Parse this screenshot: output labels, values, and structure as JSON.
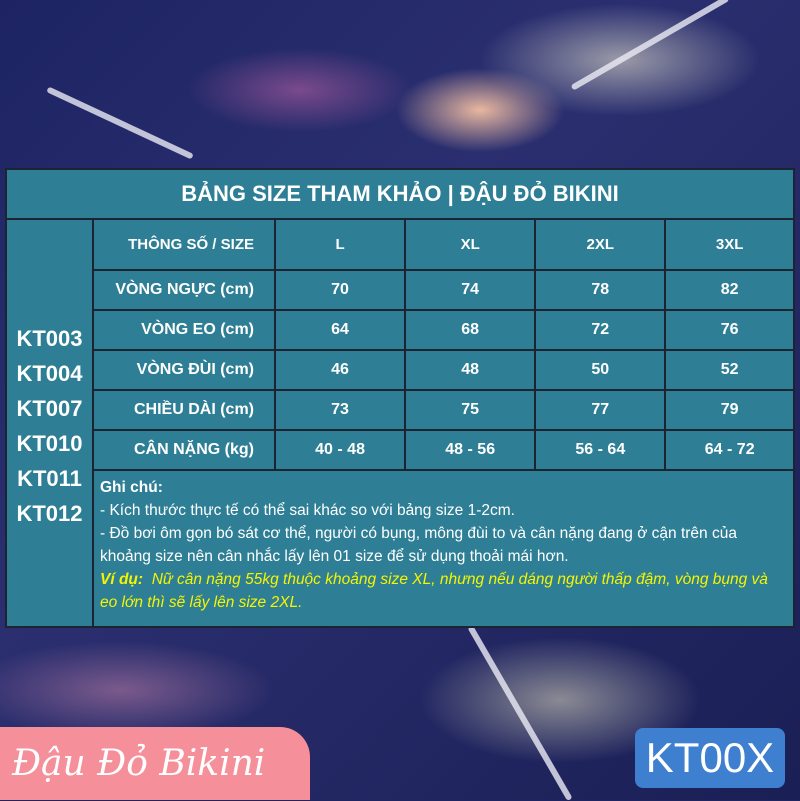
{
  "title": "BẢNG SIZE THAM KHẢO | ĐẬU ĐỎ BIKINI",
  "codes": [
    "KT003",
    "KT004",
    "KT007",
    "KT010",
    "KT011",
    "KT012"
  ],
  "table": {
    "header": [
      "THÔNG SỐ / SIZE",
      "L",
      "XL",
      "2XL",
      "3XL"
    ],
    "rows": [
      [
        "VÒNG NGỰC (cm)",
        "70",
        "74",
        "78",
        "82"
      ],
      [
        "VÒNG EO (cm)",
        "64",
        "68",
        "72",
        "76"
      ],
      [
        "VÒNG ĐÙI (cm)",
        "46",
        "48",
        "50",
        "52"
      ],
      [
        "CHIỀU DÀI (cm)",
        "73",
        "75",
        "77",
        "79"
      ],
      [
        "CÂN NẶNG (kg)",
        "40 - 48",
        "48 - 56",
        "56 - 64",
        "64 - 72"
      ]
    ]
  },
  "notes": {
    "heading": "Ghi chú:",
    "line1": "- Kích thước thực tế có thể sai khác so với bảng size 1-2cm.",
    "line2": "- Đồ bơi ôm gọn bó sát cơ thể, người có bụng, mông đùi to và cân nặng đang ở cận trên của khoảng size nên cân nhắc lấy lên 01 size để sử dụng thoải mái hơn.",
    "example_label": "Ví dụ:",
    "example": "Nữ cân nặng 55kg thuộc khoảng size XL, nhưng nếu dáng người thấp đậm, vòng bụng và eo lớn thì sẽ lấy lên size 2XL."
  },
  "brand": "Đậu Đỏ Bikini",
  "product_code": "KT00X",
  "colors": {
    "panel": "#2e7f95",
    "example": "#f5f500",
    "brand_bg": "#f58f9a",
    "code_bg": "#3f7fd0"
  }
}
